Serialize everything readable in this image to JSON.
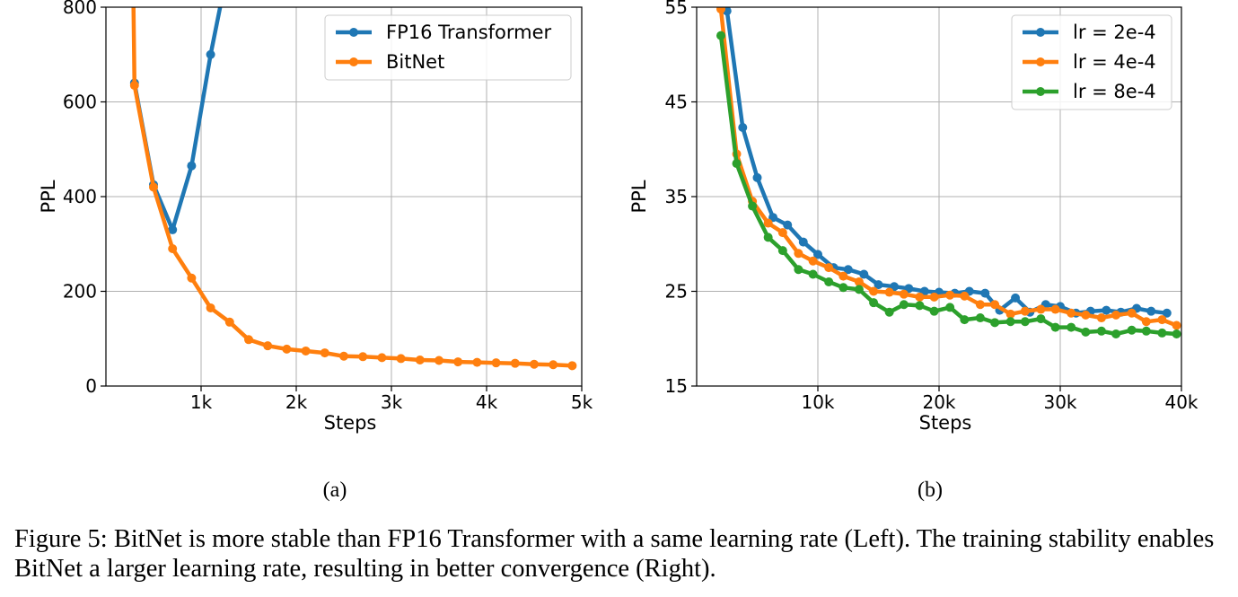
{
  "chart_data": [
    {
      "type": "line",
      "panel_label": "(a)",
      "xlabel": "Steps",
      "ylabel": "PPL",
      "xlim": [
        0,
        5000
      ],
      "ylim": [
        0,
        800
      ],
      "xticks": [
        1000,
        2000,
        3000,
        4000,
        5000
      ],
      "xtick_labels": [
        "1k",
        "2k",
        "3k",
        "4k",
        "5k"
      ],
      "yticks": [
        0,
        200,
        400,
        600,
        800
      ],
      "ytick_labels": [
        "0",
        "200",
        "400",
        "600",
        "800"
      ],
      "grid": true,
      "legend_position": "top-right",
      "series": [
        {
          "name": "FP16 Transformer",
          "color": "#1f77b4",
          "x": [
            300,
            500,
            700,
            900,
            1100,
            1200
          ],
          "y": [
            640,
            425,
            330,
            465,
            700,
            800
          ]
        },
        {
          "name": "BitNet",
          "color": "#ff7f0e",
          "x": [
            290,
            300,
            500,
            700,
            900,
            1100,
            1300,
            1500,
            1700,
            1900,
            2100,
            2300,
            2500,
            2700,
            2900,
            3100,
            3300,
            3500,
            3700,
            3900,
            4100,
            4300,
            4500,
            4700,
            4900
          ],
          "y": [
            800,
            635,
            420,
            290,
            228,
            165,
            135,
            98,
            85,
            78,
            74,
            70,
            63,
            62,
            60,
            58,
            55,
            54,
            51,
            50,
            49,
            48,
            46,
            45,
            43
          ]
        }
      ]
    },
    {
      "type": "line",
      "panel_label": "(b)",
      "xlabel": "Steps",
      "ylabel": "PPL",
      "xlim": [
        0,
        40000
      ],
      "ylim": [
        15,
        55
      ],
      "xticks": [
        10000,
        20000,
        30000,
        40000
      ],
      "xtick_labels": [
        "10k",
        "20k",
        "30k",
        "40k"
      ],
      "yticks": [
        15,
        25,
        35,
        45,
        55
      ],
      "ytick_labels": [
        "15",
        "25",
        "35",
        "45",
        "55"
      ],
      "grid": true,
      "legend_position": "top-right",
      "series": [
        {
          "name": "lr = 2e-4",
          "color": "#1f77b4",
          "x": [
            2500,
            3800,
            5000,
            6300,
            7500,
            8800,
            10000,
            11300,
            12500,
            13800,
            15000,
            16300,
            17500,
            18800,
            20000,
            21300,
            22500,
            23800,
            25000,
            26300,
            27500,
            28800,
            30000,
            31300,
            32500,
            33800,
            35000,
            36300,
            37500,
            38800
          ],
          "y": [
            54.6,
            42.3,
            37.0,
            32.8,
            32.0,
            30.2,
            28.9,
            27.5,
            27.3,
            26.8,
            25.7,
            25.5,
            25.3,
            25.0,
            24.9,
            24.8,
            25.0,
            24.8,
            23.0,
            24.3,
            22.8,
            23.6,
            23.4,
            22.7,
            22.9,
            23.0,
            22.8,
            23.2,
            22.9,
            22.7
          ]
        },
        {
          "name": "lr = 4e-4",
          "color": "#ff7f0e",
          "x": [
            2000,
            3300,
            4600,
            5900,
            7100,
            8400,
            9600,
            10900,
            12100,
            13400,
            14600,
            15900,
            17100,
            18400,
            19600,
            20900,
            22100,
            23400,
            24600,
            25900,
            27100,
            28400,
            29600,
            30900,
            32100,
            33400,
            34600,
            35900,
            37100,
            38400,
            39600
          ],
          "y": [
            54.8,
            39.5,
            34.5,
            32.2,
            31.2,
            29.0,
            28.2,
            27.5,
            26.6,
            26.0,
            25.0,
            24.9,
            24.7,
            24.4,
            24.4,
            24.6,
            24.5,
            23.6,
            23.6,
            22.6,
            22.9,
            23.1,
            23.1,
            22.7,
            22.5,
            22.2,
            22.5,
            22.7,
            21.8,
            22.0,
            21.4
          ]
        },
        {
          "name": "lr = 8e-4",
          "color": "#2ca02c",
          "x": [
            2000,
            3300,
            4600,
            5900,
            7100,
            8400,
            9600,
            10900,
            12100,
            13400,
            14600,
            15900,
            17100,
            18400,
            19600,
            20900,
            22100,
            23400,
            24600,
            25900,
            27100,
            28400,
            29600,
            30900,
            32100,
            33400,
            34600,
            35900,
            37100,
            38400,
            39600
          ],
          "y": [
            52.0,
            38.5,
            34.0,
            30.7,
            29.3,
            27.3,
            26.8,
            26.0,
            25.4,
            25.2,
            23.8,
            22.8,
            23.6,
            23.5,
            22.9,
            23.3,
            22.0,
            22.2,
            21.7,
            21.8,
            21.8,
            22.1,
            21.2,
            21.2,
            20.7,
            20.8,
            20.5,
            20.9,
            20.8,
            20.6,
            20.5
          ]
        }
      ]
    }
  ],
  "caption": {
    "text": "Figure 5: BitNet is more stable than FP16 Transformer with a same learning rate (Left). The training stability enables BitNet a larger learning rate, resulting in better convergence (Right)."
  }
}
